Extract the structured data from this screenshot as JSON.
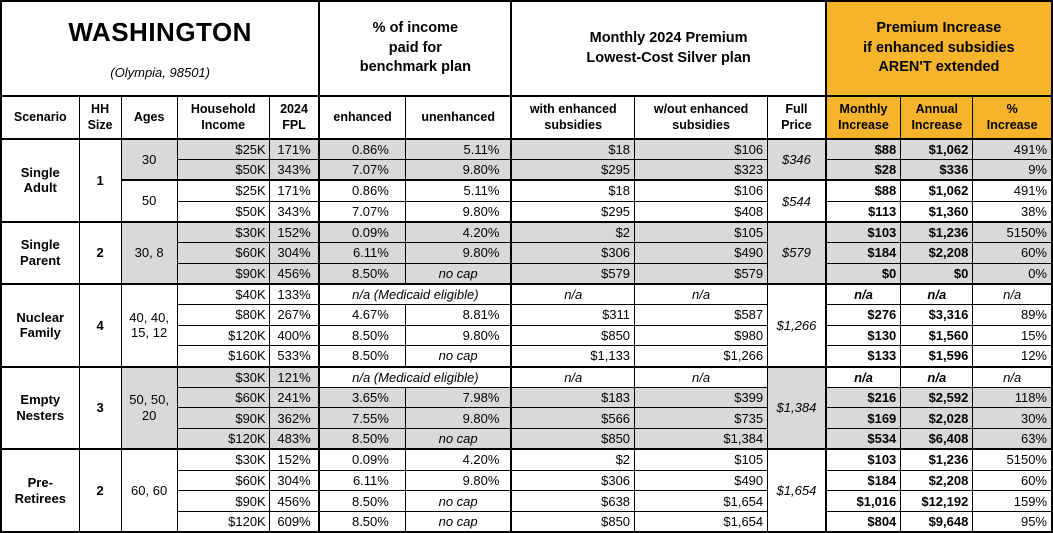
{
  "header": {
    "state": "WASHINGTON",
    "location": "(Olympia, 98501)",
    "section_benchmark": "% of income\npaid for\nbenchmark plan",
    "section_premium": "Monthly 2024 Premium\nLowest-Cost Silver plan",
    "section_increase": "Premium Increase\nif enhanced subsidies\nAREN'T extended",
    "accent_color": "#f6b42c",
    "shade_color": "#d9d9d9"
  },
  "columns": {
    "scenario": "Scenario",
    "hh_size": "HH\nSize",
    "ages": "Ages",
    "household_income": "Household\nIncome",
    "fpl_2024": "2024\nFPL",
    "enhanced": "enhanced",
    "unenhanced": "unenhanced",
    "with_subsidies": "with enhanced\nsubsidies",
    "without_subsidies": "w/out enhanced\nsubsidies",
    "full_price": "Full\nPrice",
    "monthly_increase": "Monthly\nIncrease",
    "annual_increase": "Annual\nIncrease",
    "pct_increase": "%\nIncrease"
  },
  "na_text": "n/a",
  "medicaid_text": "n/a (Medicaid eligible)",
  "no_cap_text": "no cap",
  "groups": [
    {
      "scenario": "Single Adult",
      "hh_size": "1",
      "blocks": [
        {
          "ages": "30",
          "shaded": true,
          "full_price": "$346",
          "rows": [
            {
              "income": "$25K",
              "fpl": "171%",
              "enhanced": "0.86%",
              "unenhanced": "5.11%",
              "with_sub": "$18",
              "wout_sub": "$106",
              "monthly": "$88",
              "annual": "$1,062",
              "pct": "491%"
            },
            {
              "income": "$50K",
              "fpl": "343%",
              "enhanced": "7.07%",
              "unenhanced": "9.80%",
              "with_sub": "$295",
              "wout_sub": "$323",
              "monthly": "$28",
              "annual": "$336",
              "pct": "9%"
            }
          ]
        },
        {
          "ages": "50",
          "shaded": false,
          "full_price": "$544",
          "rows": [
            {
              "income": "$25K",
              "fpl": "171%",
              "enhanced": "0.86%",
              "unenhanced": "5.11%",
              "with_sub": "$18",
              "wout_sub": "$106",
              "monthly": "$88",
              "annual": "$1,062",
              "pct": "491%"
            },
            {
              "income": "$50K",
              "fpl": "343%",
              "enhanced": "7.07%",
              "unenhanced": "9.80%",
              "with_sub": "$295",
              "wout_sub": "$408",
              "monthly": "$113",
              "annual": "$1,360",
              "pct": "38%"
            }
          ]
        }
      ]
    },
    {
      "scenario": "Single Parent",
      "hh_size": "2",
      "blocks": [
        {
          "ages": "30, 8",
          "shaded": true,
          "full_price": "$579",
          "rows": [
            {
              "income": "$30K",
              "fpl": "152%",
              "enhanced": "0.09%",
              "unenhanced": "4.20%",
              "with_sub": "$2",
              "wout_sub": "$105",
              "monthly": "$103",
              "annual": "$1,236",
              "pct": "5150%"
            },
            {
              "income": "$60K",
              "fpl": "304%",
              "enhanced": "6.11%",
              "unenhanced": "9.80%",
              "with_sub": "$306",
              "wout_sub": "$490",
              "monthly": "$184",
              "annual": "$2,208",
              "pct": "60%"
            },
            {
              "income": "$90K",
              "fpl": "456%",
              "enhanced": "8.50%",
              "unenhanced": "no cap",
              "no_cap": true,
              "with_sub": "$579",
              "wout_sub": "$579",
              "monthly": "$0",
              "annual": "$0",
              "pct": "0%"
            }
          ]
        }
      ]
    },
    {
      "scenario": "Nuclear Family",
      "hh_size": "4",
      "blocks": [
        {
          "ages": "40, 40, 15, 12",
          "shaded": false,
          "full_price": "$1,266",
          "rows": [
            {
              "income": "$40K",
              "fpl": "133%",
              "medicaid": true,
              "with_sub": "n/a",
              "wout_sub": "n/a",
              "monthly": "n/a",
              "annual": "n/a",
              "pct": "n/a"
            },
            {
              "income": "$80K",
              "fpl": "267%",
              "enhanced": "4.67%",
              "unenhanced": "8.81%",
              "with_sub": "$311",
              "wout_sub": "$587",
              "monthly": "$276",
              "annual": "$3,316",
              "pct": "89%"
            },
            {
              "income": "$120K",
              "fpl": "400%",
              "enhanced": "8.50%",
              "unenhanced": "9.80%",
              "with_sub": "$850",
              "wout_sub": "$980",
              "monthly": "$130",
              "annual": "$1,560",
              "pct": "15%"
            },
            {
              "income": "$160K",
              "fpl": "533%",
              "enhanced": "8.50%",
              "unenhanced": "no cap",
              "no_cap": true,
              "with_sub": "$1,133",
              "wout_sub": "$1,266",
              "monthly": "$133",
              "annual": "$1,596",
              "pct": "12%"
            }
          ]
        }
      ]
    },
    {
      "scenario": "Empty Nesters",
      "hh_size": "3",
      "blocks": [
        {
          "ages": "50, 50, 20",
          "shaded": true,
          "full_price": "$1,384",
          "rows": [
            {
              "income": "$30K",
              "fpl": "121%",
              "medicaid": true,
              "with_sub": "n/a",
              "wout_sub": "n/a",
              "monthly": "n/a",
              "annual": "n/a",
              "pct": "n/a"
            },
            {
              "income": "$60K",
              "fpl": "241%",
              "enhanced": "3.65%",
              "unenhanced": "7.98%",
              "with_sub": "$183",
              "wout_sub": "$399",
              "monthly": "$216",
              "annual": "$2,592",
              "pct": "118%"
            },
            {
              "income": "$90K",
              "fpl": "362%",
              "enhanced": "7.55%",
              "unenhanced": "9.80%",
              "with_sub": "$566",
              "wout_sub": "$735",
              "monthly": "$169",
              "annual": "$2,028",
              "pct": "30%"
            },
            {
              "income": "$120K",
              "fpl": "483%",
              "enhanced": "8.50%",
              "unenhanced": "no cap",
              "no_cap": true,
              "with_sub": "$850",
              "wout_sub": "$1,384",
              "monthly": "$534",
              "annual": "$6,408",
              "pct": "63%"
            }
          ]
        }
      ]
    },
    {
      "scenario": "Pre-Retirees",
      "hh_size": "2",
      "blocks": [
        {
          "ages": "60, 60",
          "shaded": false,
          "full_price": "$1,654",
          "rows": [
            {
              "income": "$30K",
              "fpl": "152%",
              "enhanced": "0.09%",
              "unenhanced": "4.20%",
              "with_sub": "$2",
              "wout_sub": "$105",
              "monthly": "$103",
              "annual": "$1,236",
              "pct": "5150%"
            },
            {
              "income": "$60K",
              "fpl": "304%",
              "enhanced": "6.11%",
              "unenhanced": "9.80%",
              "with_sub": "$306",
              "wout_sub": "$490",
              "monthly": "$184",
              "annual": "$2,208",
              "pct": "60%"
            },
            {
              "income": "$90K",
              "fpl": "456%",
              "enhanced": "8.50%",
              "unenhanced": "no cap",
              "no_cap": true,
              "with_sub": "$638",
              "wout_sub": "$1,654",
              "monthly": "$1,016",
              "annual": "$12,192",
              "pct": "159%"
            },
            {
              "income": "$120K",
              "fpl": "609%",
              "enhanced": "8.50%",
              "unenhanced": "no cap",
              "no_cap": true,
              "with_sub": "$850",
              "wout_sub": "$1,654",
              "monthly": "$804",
              "annual": "$9,648",
              "pct": "95%"
            }
          ]
        }
      ]
    }
  ]
}
